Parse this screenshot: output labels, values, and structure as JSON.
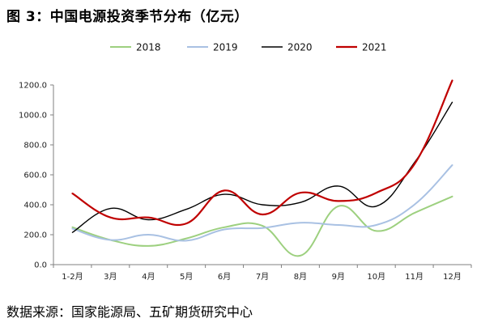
{
  "header": {
    "title": "图 3：中国电源投资季节分布（亿元）"
  },
  "footer": {
    "source": "数据来源：国家能源局、五矿期货研究中心"
  },
  "chart_data": {
    "type": "line",
    "categories": [
      "1-2月",
      "3月",
      "4月",
      "5月",
      "6月",
      "7月",
      "8月",
      "9月",
      "10月",
      "11月",
      "12月"
    ],
    "yticks": [
      "0.0",
      "200.0",
      "400.0",
      "600.0",
      "800.0",
      "1000.0",
      "1200.0"
    ],
    "ylim": [
      0,
      1200
    ],
    "legend_position": "top",
    "grid": false,
    "series": [
      {
        "name": "2018",
        "color": "#9dd07f",
        "width": 2,
        "values": [
          250,
          165,
          125,
          175,
          250,
          260,
          60,
          390,
          225,
          345,
          455
        ]
      },
      {
        "name": "2019",
        "color": "#a9c1e3",
        "width": 2,
        "values": [
          240,
          165,
          200,
          160,
          235,
          245,
          280,
          265,
          265,
          400,
          665
        ]
      },
      {
        "name": "2020",
        "color": "#000000",
        "width": 1.4,
        "values": [
          215,
          375,
          300,
          370,
          470,
          400,
          415,
          525,
          390,
          680,
          1085
        ]
      },
      {
        "name": "2021",
        "color": "#c00000",
        "width": 2.2,
        "values": [
          475,
          315,
          315,
          275,
          495,
          335,
          480,
          425,
          480,
          670,
          1230
        ]
      }
    ]
  }
}
